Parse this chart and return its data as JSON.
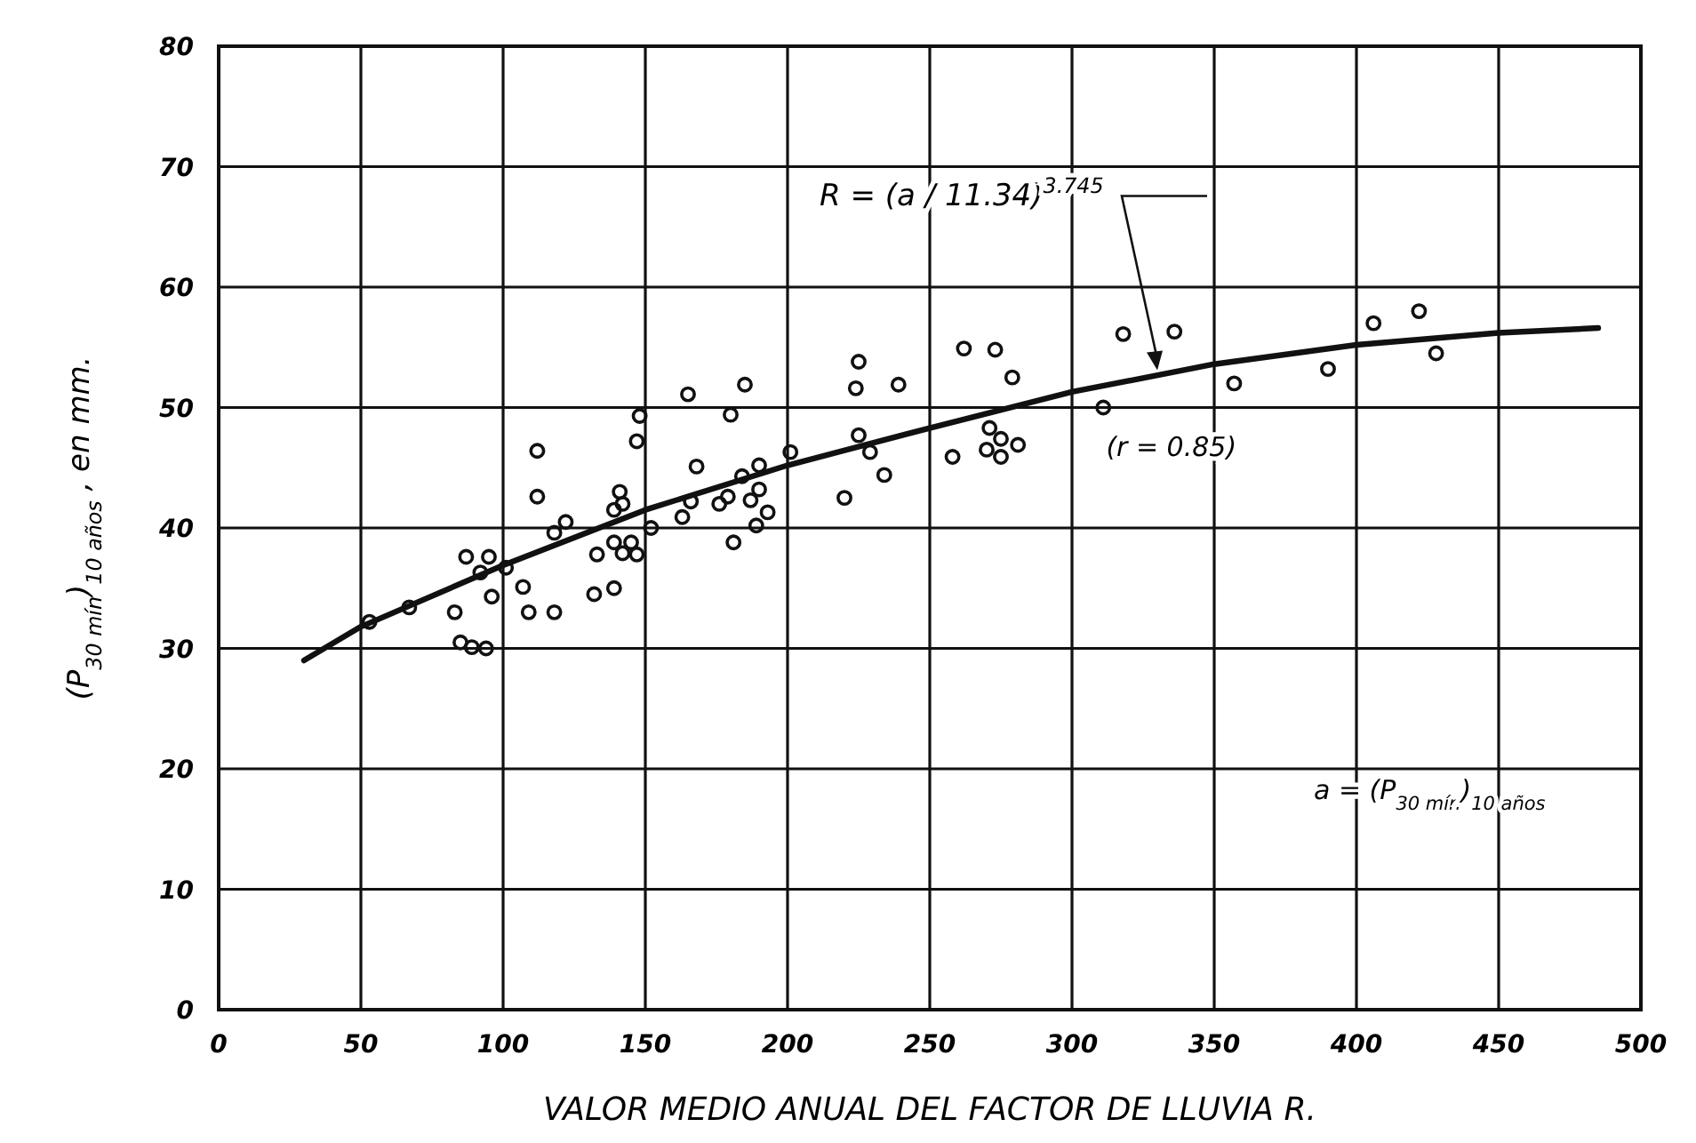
{
  "chart_data": {
    "type": "scatter",
    "xlabel": "VALOR MEDIO ANUAL DEL FACTOR DE LLUVIA R.",
    "ylabel": "(P$_{30 mín}$)$_{10 años}$ ,  en mm.",
    "xlim": [
      0,
      500
    ],
    "xticks": [
      0,
      50,
      100,
      150,
      200,
      250,
      300,
      350,
      400,
      450,
      500
    ],
    "ylim": [
      0,
      80
    ],
    "yticks": [
      0,
      10,
      20,
      30,
      40,
      50,
      60,
      70,
      80
    ],
    "grid": true,
    "series": [
      {
        "color": "#111111",
        "marker": "circle",
        "x": [
          53,
          67,
          83,
          87,
          85,
          89,
          94,
          92,
          95,
          96,
          101,
          107,
          109,
          112,
          112,
          118,
          118,
          122,
          132,
          133,
          139,
          139,
          141,
          142,
          139,
          142,
          145,
          147,
          147,
          148,
          152,
          163,
          165,
          166,
          168,
          176,
          179,
          181,
          180,
          185,
          184,
          187,
          189,
          190,
          190,
          193,
          201,
          220,
          224,
          225,
          225,
          229,
          234,
          239,
          258,
          262,
          271,
          270,
          275,
          275,
          273,
          279,
          281,
          311,
          318,
          336,
          357,
          390,
          406,
          422,
          428
        ],
        "values": [
          32.2,
          33.4,
          33,
          37.6,
          30.5,
          30.1,
          30,
          36.3,
          37.6,
          34.3,
          36.7,
          35.1,
          33,
          46.4,
          42.6,
          33,
          39.6,
          40.5,
          34.5,
          37.8,
          35,
          41.5,
          43,
          42,
          38.8,
          37.9,
          38.8,
          37.8,
          47.2,
          49.3,
          40,
          40.9,
          51.1,
          42.2,
          45.1,
          42,
          42.6,
          38.8,
          49.4,
          51.9,
          44.3,
          42.3,
          40.2,
          43.2,
          45.2,
          41.3,
          46.3,
          42.5,
          51.6,
          53.8,
          47.7,
          46.3,
          44.4,
          51.9,
          45.9,
          54.9,
          48.3,
          46.5,
          47.4,
          45.9,
          54.8,
          52.5,
          46.9,
          50,
          56.1,
          56.3,
          52,
          53.2,
          57,
          58,
          54.5
        ]
      },
      {
        "type": "line",
        "color": "#111111",
        "marker": "none",
        "line_style": "solid",
        "x": [
          30,
          50,
          100,
          150,
          200,
          250,
          300,
          350,
          400,
          450,
          485
        ],
        "values": [
          29,
          31.8,
          36.9,
          41.5,
          45.2,
          48.3,
          51.3,
          53.6,
          55.2,
          56.2,
          56.6
        ]
      }
    ],
    "annotations": [
      {
        "text": "R = (a / 11.34)$^{3.745}$",
        "x": 330,
        "y": 52.8
      },
      "(r = 0.85)",
      "a = (P$_{30 mín}$)$_{10 años}$"
    ]
  }
}
